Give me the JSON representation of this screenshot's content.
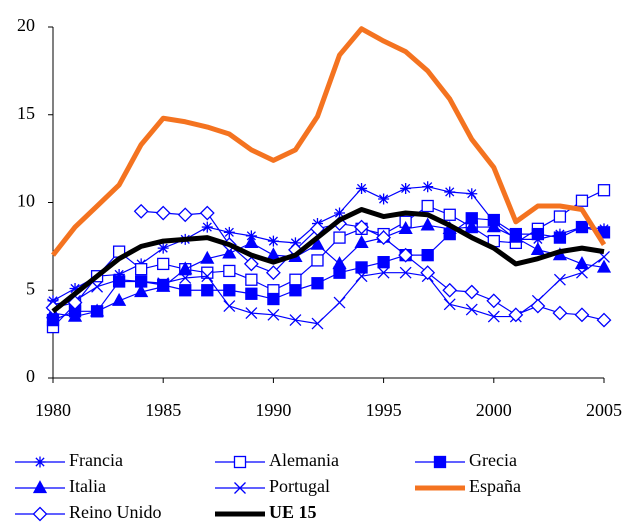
{
  "chart_data": {
    "type": "line",
    "x": [
      1980,
      1981,
      1982,
      1983,
      1984,
      1985,
      1986,
      1987,
      1988,
      1989,
      1990,
      1991,
      1992,
      1993,
      1994,
      1995,
      1996,
      1997,
      1998,
      1999,
      2000,
      2001,
      2002,
      2003,
      2004,
      2005
    ],
    "xlim": [
      1980,
      2005
    ],
    "xticks": [
      1980,
      1985,
      1990,
      1995,
      2000,
      2005
    ],
    "ylim": [
      0,
      20
    ],
    "yticks": [
      0,
      5,
      10,
      15,
      20
    ],
    "series": [
      {
        "name": "Francia",
        "color": "#0000ff",
        "marker": "asterisk",
        "line_width": 1.2,
        "values": [
          4.4,
          5.1,
          5.8,
          5.9,
          6.5,
          7.4,
          7.9,
          8.6,
          8.3,
          8.1,
          7.8,
          7.7,
          8.8,
          9.4,
          10.8,
          10.2,
          10.8,
          10.9,
          10.6,
          10.5,
          8.9,
          7.9,
          7.9,
          8.2,
          8.6,
          8.5
        ]
      },
      {
        "name": "Alemania",
        "color": "#0000ff",
        "marker": "square-open",
        "line_width": 1.2,
        "values": [
          2.9,
          4.2,
          5.8,
          7.2,
          6.2,
          6.5,
          6.2,
          6.0,
          6.1,
          5.6,
          5.0,
          5.6,
          6.7,
          8.0,
          8.5,
          8.2,
          8.9,
          9.8,
          9.3,
          8.6,
          7.8,
          7.7,
          8.5,
          9.2,
          10.1,
          10.7
        ]
      },
      {
        "name": "Grecia",
        "color": "#0000ff",
        "marker": "square",
        "line_width": 1.2,
        "values": [
          3.3,
          3.8,
          3.8,
          5.5,
          5.5,
          5.3,
          5.0,
          5.0,
          5.0,
          4.8,
          4.5,
          5.0,
          5.4,
          6.0,
          6.3,
          6.6,
          7.0,
          7.0,
          8.2,
          9.1,
          9.0,
          8.2,
          8.2,
          8.0,
          8.6,
          8.3
        ]
      },
      {
        "name": "Italia",
        "color": "#0000ff",
        "marker": "triangle",
        "line_width": 1.2,
        "values": [
          3.7,
          3.5,
          3.8,
          4.4,
          4.9,
          5.2,
          6.2,
          6.8,
          7.1,
          7.7,
          7.0,
          6.9,
          7.6,
          6.5,
          7.7,
          8.0,
          8.5,
          8.7,
          8.5,
          8.6,
          8.6,
          8.0,
          7.3,
          7.0,
          6.5,
          6.3
        ]
      },
      {
        "name": "Portugal",
        "color": "#0000ff",
        "marker": "x",
        "line_width": 1.2,
        "values": [
          4.2,
          4.4,
          5.2,
          5.6,
          5.5,
          5.4,
          5.7,
          5.8,
          4.1,
          3.7,
          3.6,
          3.3,
          3.1,
          4.3,
          5.8,
          6.0,
          6.0,
          5.8,
          4.2,
          3.9,
          3.5,
          3.5,
          4.4,
          5.6,
          6.0,
          6.9
        ]
      },
      {
        "name": "España",
        "color": "#f47320",
        "marker": "none",
        "line_width": 5,
        "values": [
          7.0,
          8.6,
          9.8,
          11.0,
          13.3,
          14.8,
          14.6,
          14.3,
          13.9,
          13.0,
          12.4,
          13.0,
          14.9,
          18.4,
          19.9,
          19.2,
          18.6,
          17.5,
          15.9,
          13.6,
          12.0,
          8.9,
          9.8,
          9.8,
          9.6,
          7.6
        ]
      },
      {
        "name": "Reino Unido",
        "color": "#0000ff",
        "marker": "diamond-open",
        "line_width": 1.2,
        "values": [
          4.0,
          4.3,
          null,
          null,
          9.5,
          9.4,
          9.3,
          9.4,
          7.6,
          6.5,
          6.0,
          7.3,
          8.5,
          8.8,
          8.6,
          8.0,
          7.0,
          6.0,
          5.0,
          4.9,
          4.4,
          3.6,
          4.1,
          3.7,
          3.6,
          3.3
        ]
      },
      {
        "name": "UE 15",
        "color": "#000000",
        "marker": "none",
        "line_width": 5,
        "bold_label": true,
        "values": [
          3.8,
          4.8,
          5.8,
          6.8,
          7.5,
          7.8,
          7.9,
          8.0,
          7.6,
          7.0,
          6.6,
          7.0,
          8.0,
          9.0,
          9.6,
          9.2,
          9.4,
          9.3,
          8.7,
          8.0,
          7.4,
          6.5,
          6.8,
          7.2,
          7.4,
          7.2
        ]
      }
    ]
  }
}
